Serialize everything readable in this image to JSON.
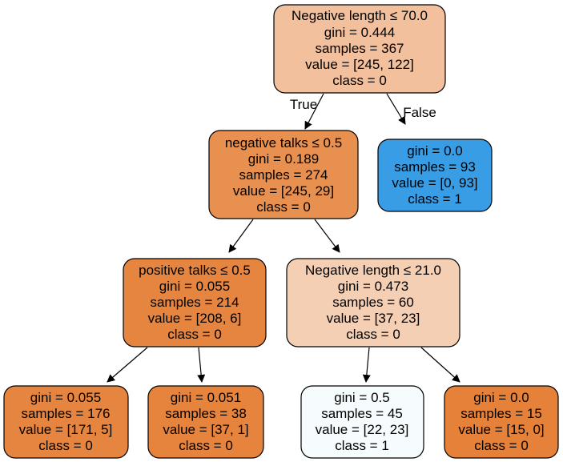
{
  "nodes": [
    {
      "id": "n0",
      "split": "Negative length ≤ 70.0",
      "gini": "gini = 0.444",
      "samples": "samples = 367",
      "value": "value = [245, 122]",
      "class": "class = 0",
      "fill": "#f2c09c"
    },
    {
      "id": "n1",
      "split": "negative talks ≤ 0.5",
      "gini": "gini = 0.189",
      "samples": "samples = 274",
      "value": "value = [245, 29]",
      "class": "class = 0",
      "fill": "#e89050"
    },
    {
      "id": "n2",
      "split": "",
      "gini": "gini = 0.0",
      "samples": "samples = 93",
      "value": "value = [0, 93]",
      "class": "class = 1",
      "fill": "#399de5"
    },
    {
      "id": "n3",
      "split": "positive talks ≤ 0.5",
      "gini": "gini = 0.055",
      "samples": "samples = 214",
      "value": "value = [208, 6]",
      "class": "class = 0",
      "fill": "#e6853f"
    },
    {
      "id": "n4",
      "split": "Negative length ≤ 21.0",
      "gini": "gini = 0.473",
      "samples": "samples = 60",
      "value": "value = [37, 23]",
      "class": "class = 0",
      "fill": "#f5cfb4"
    },
    {
      "id": "n5",
      "split": "",
      "gini": "gini = 0.055",
      "samples": "samples = 176",
      "value": "value = [171, 5]",
      "class": "class = 0",
      "fill": "#e6853f"
    },
    {
      "id": "n6",
      "split": "",
      "gini": "gini = 0.051",
      "samples": "samples = 38",
      "value": "value = [37, 1]",
      "class": "class = 0",
      "fill": "#e6843e"
    },
    {
      "id": "n7",
      "split": "",
      "gini": "gini = 0.5",
      "samples": "samples = 45",
      "value": "value = [22, 23]",
      "class": "class = 1",
      "fill": "#f6fbfe"
    },
    {
      "id": "n8",
      "split": "",
      "gini": "gini = 0.0",
      "samples": "samples = 15",
      "value": "value = [15, 0]",
      "class": "class = 0",
      "fill": "#e58139"
    }
  ],
  "edge_labels": {
    "true_label": "True",
    "false_label": "False"
  },
  "colors": {
    "stroke": "#000000",
    "text": "#000000",
    "background": "#ffffff"
  }
}
